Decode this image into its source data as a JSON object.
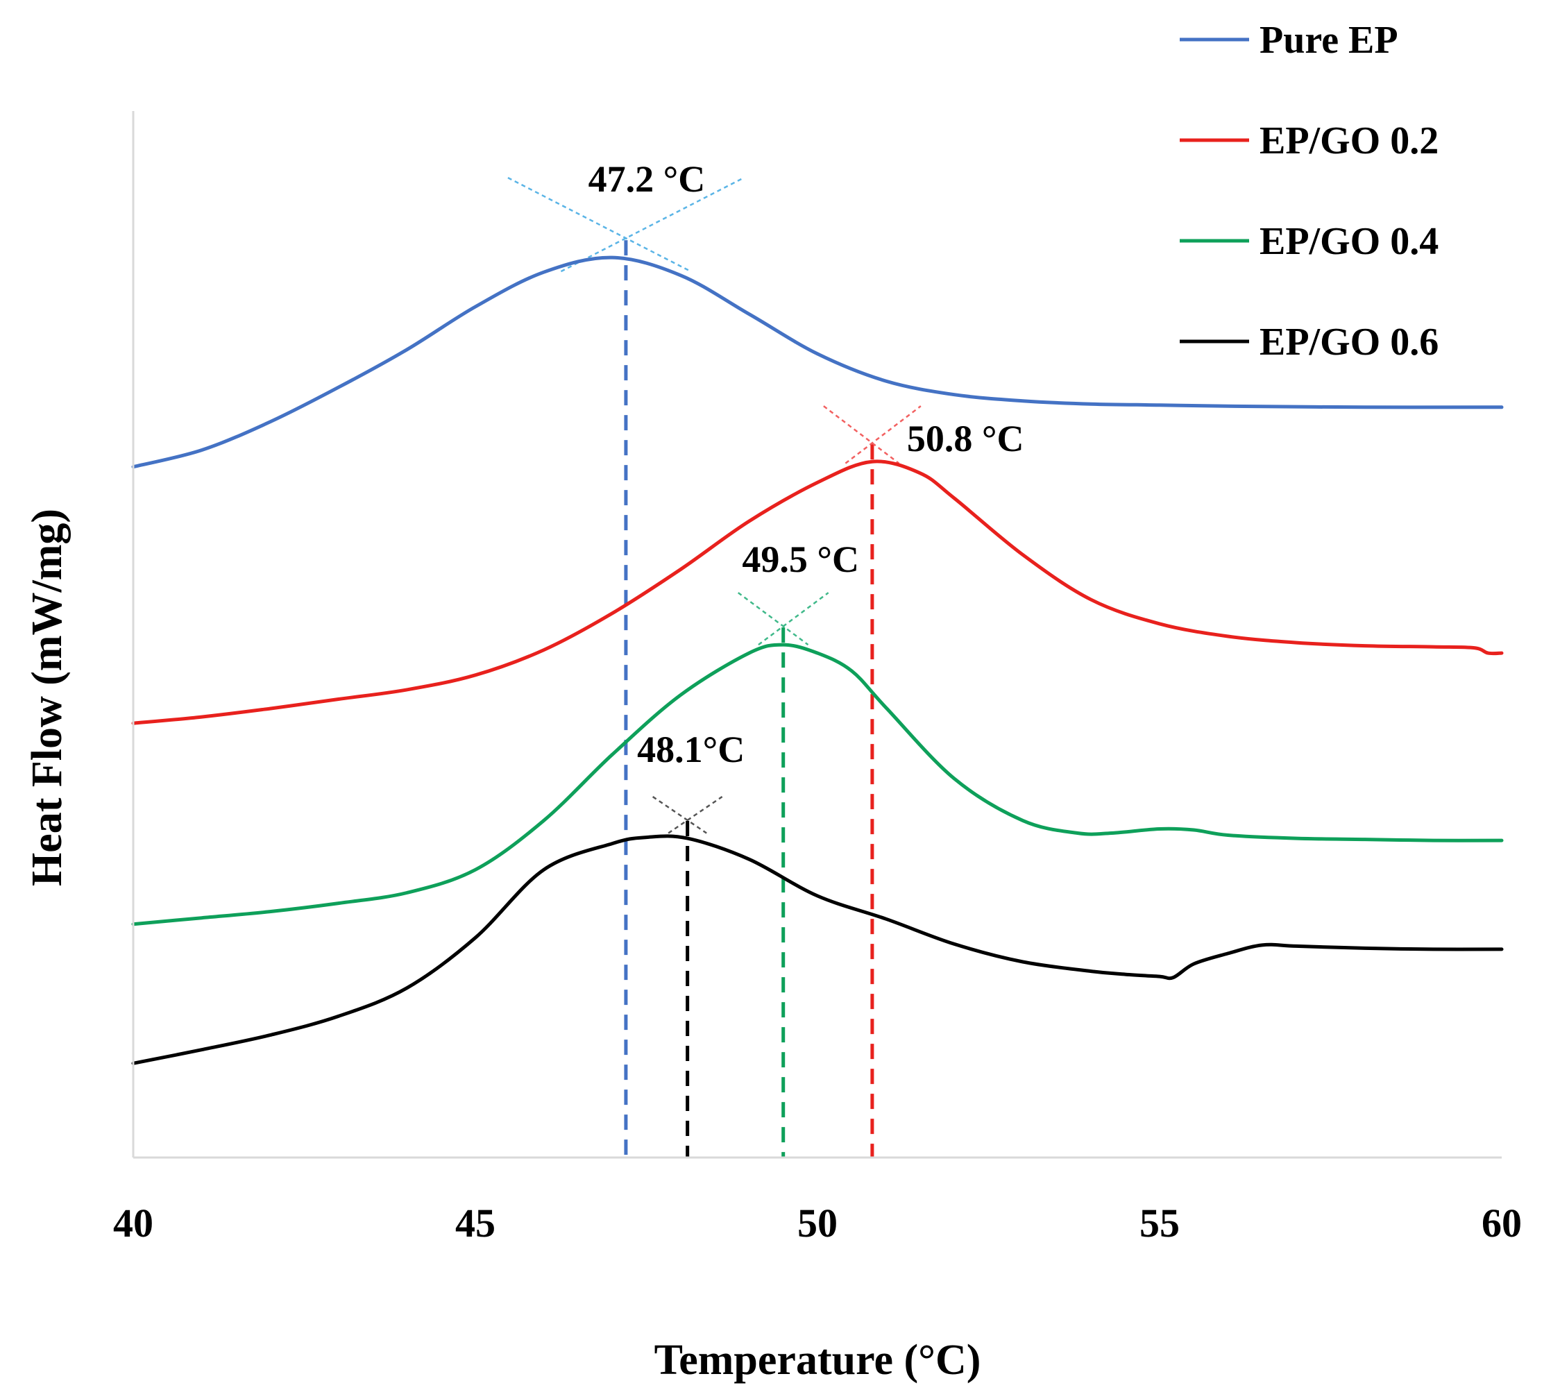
{
  "chart_data": {
    "type": "line",
    "xlabel": "Temperature (°C)",
    "ylabel": "Heat Flow (mW/mg)",
    "xlim": [
      40,
      60
    ],
    "ylim": [
      0,
      100
    ],
    "xticks": [
      "40",
      "45",
      "50",
      "55",
      "60"
    ],
    "xtick_values": [
      40,
      45,
      50,
      55,
      60
    ],
    "legend_position": "top-right",
    "series": [
      {
        "name": "Pure EP",
        "color": "#4472C4",
        "peak_x": 47.2,
        "peak_y": 86,
        "peak_label": "47.2 °C",
        "guide_color": "#5AB4E6",
        "points": [
          [
            40,
            66
          ],
          [
            41,
            67.6
          ],
          [
            42,
            70.3
          ],
          [
            43,
            73.6
          ],
          [
            44,
            77.2
          ],
          [
            45,
            81.3
          ],
          [
            46,
            84.6
          ],
          [
            47,
            86
          ],
          [
            48,
            84.3
          ],
          [
            49,
            80.6
          ],
          [
            50,
            76.8
          ],
          [
            51,
            74.2
          ],
          [
            52,
            72.9
          ],
          [
            53,
            72.3
          ],
          [
            54,
            72
          ],
          [
            55,
            71.9
          ],
          [
            56,
            71.8
          ],
          [
            58,
            71.7
          ],
          [
            60,
            71.7
          ]
        ]
      },
      {
        "name": "EP/GO 0.2",
        "color": "#E8211D",
        "peak_x": 50.8,
        "peak_y": 66.5,
        "peak_label": "50.8 °C",
        "guide_color": "#F26060",
        "points": [
          [
            40,
            41.5
          ],
          [
            41,
            42.1
          ],
          [
            42,
            42.9
          ],
          [
            43,
            43.8
          ],
          [
            44,
            44.7
          ],
          [
            45,
            46.1
          ],
          [
            46,
            48.5
          ],
          [
            47,
            52
          ],
          [
            48,
            56.2
          ],
          [
            49,
            60.8
          ],
          [
            50,
            64.5
          ],
          [
            50.8,
            66.5
          ],
          [
            51.5,
            65.4
          ],
          [
            52,
            63
          ],
          [
            53,
            57.6
          ],
          [
            54,
            53.3
          ],
          [
            55,
            51
          ],
          [
            56,
            49.8
          ],
          [
            57,
            49.2
          ],
          [
            58,
            48.9
          ],
          [
            59,
            48.8
          ],
          [
            59.6,
            48.7
          ],
          [
            59.8,
            48.2
          ],
          [
            60,
            48.2
          ]
        ]
      },
      {
        "name": "EP/GO 0.4",
        "color": "#0EA05A",
        "peak_x": 49.5,
        "peak_y": 49,
        "peak_label": "49.5 °C",
        "guide_color": "#40B98A",
        "points": [
          [
            40,
            22.3
          ],
          [
            41,
            22.9
          ],
          [
            42,
            23.5
          ],
          [
            43,
            24.3
          ],
          [
            44,
            25.3
          ],
          [
            45,
            27.5
          ],
          [
            46,
            32.2
          ],
          [
            47,
            38.5
          ],
          [
            48,
            44.2
          ],
          [
            49,
            48.2
          ],
          [
            49.5,
            49
          ],
          [
            50,
            48.2
          ],
          [
            50.5,
            46.5
          ],
          [
            51,
            43
          ],
          [
            52,
            36.2
          ],
          [
            53,
            32.2
          ],
          [
            53.8,
            31
          ],
          [
            54.3,
            31
          ],
          [
            55,
            31.4
          ],
          [
            55.5,
            31.3
          ],
          [
            56,
            30.8
          ],
          [
            57,
            30.5
          ],
          [
            58,
            30.4
          ],
          [
            59,
            30.3
          ],
          [
            60,
            30.3
          ]
        ]
      },
      {
        "name": "EP/GO 0.6",
        "color": "#000000",
        "peak_x": 48.1,
        "peak_y": 30.5,
        "peak_label": "48.1°C",
        "guide_color": "#555555",
        "points": [
          [
            40,
            9
          ],
          [
            41,
            10.3
          ],
          [
            42,
            11.7
          ],
          [
            43,
            13.5
          ],
          [
            44,
            16.2
          ],
          [
            45,
            21
          ],
          [
            46,
            27.5
          ],
          [
            47,
            30
          ],
          [
            47.5,
            30.6
          ],
          [
            48.1,
            30.5
          ],
          [
            49,
            28.5
          ],
          [
            50,
            25
          ],
          [
            51,
            22.8
          ],
          [
            52,
            20.4
          ],
          [
            53,
            18.7
          ],
          [
            54,
            17.8
          ],
          [
            54.5,
            17.5
          ],
          [
            55,
            17.3
          ],
          [
            55.2,
            17.2
          ],
          [
            55.5,
            18.5
          ],
          [
            56,
            19.5
          ],
          [
            56.5,
            20.3
          ],
          [
            57,
            20.2
          ],
          [
            58,
            20
          ],
          [
            59,
            19.9
          ],
          [
            60,
            19.9
          ]
        ]
      }
    ]
  }
}
